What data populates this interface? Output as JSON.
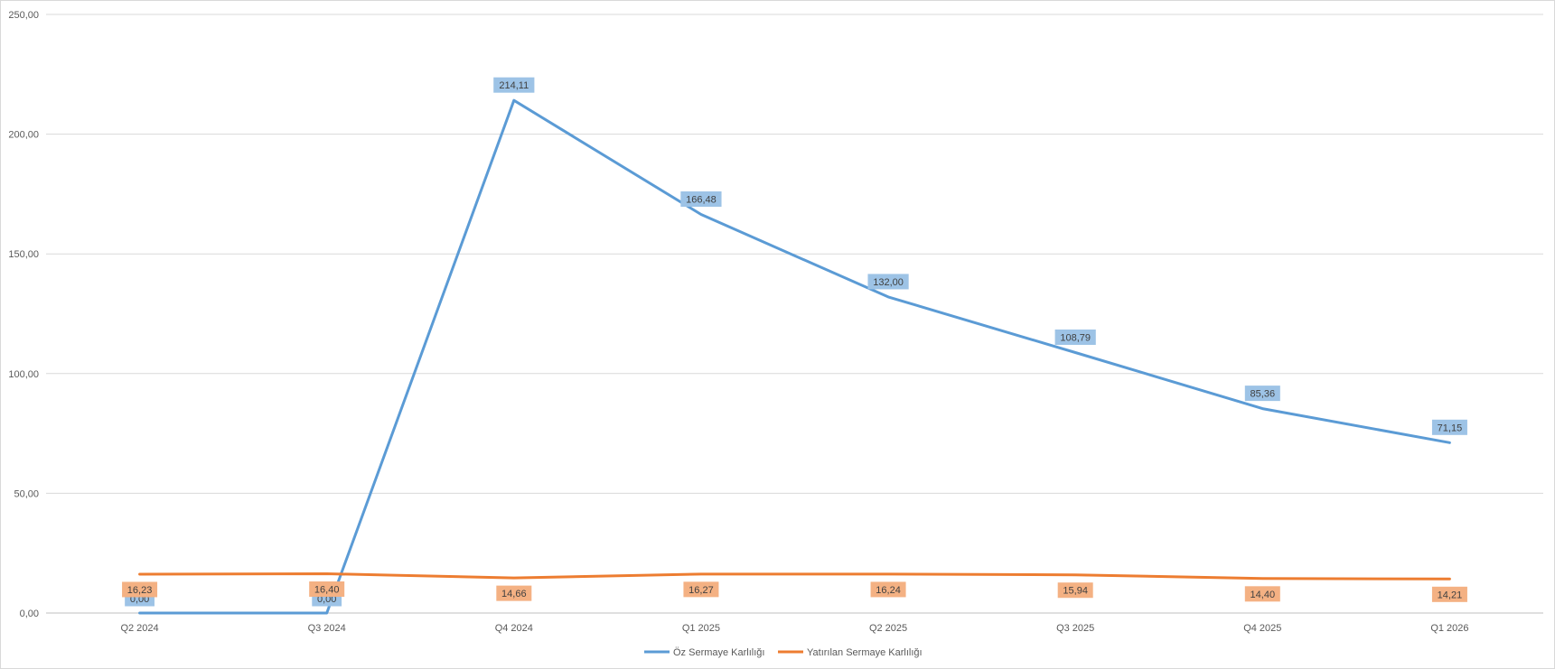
{
  "chart_data": {
    "type": "line",
    "title": "",
    "xlabel": "",
    "ylabel": "",
    "categories": [
      "Q2 2024",
      "Q3 2024",
      "Q4 2024",
      "Q1 2025",
      "Q2 2025",
      "Q3 2025",
      "Q4 2025",
      "Q1 2026"
    ],
    "ylim": [
      0,
      250
    ],
    "yticks": [
      0,
      50,
      100,
      150,
      200,
      250
    ],
    "ytick_labels": [
      "0,00",
      "50,00",
      "100,00",
      "150,00",
      "200,00",
      "250,00"
    ],
    "grid": true,
    "legend_position": "bottom",
    "series": [
      {
        "name": "Öz Sermaye Karlılığı",
        "color": "#5b9bd5",
        "label_bg": "#9dc3e6",
        "values": [
          0,
          0,
          214.11,
          166.48,
          132.0,
          108.79,
          85.36,
          71.15
        ],
        "labels": [
          "0,00",
          "0,00",
          "214,11",
          "166,48",
          "132,00",
          "108,79",
          "85,36",
          "71,15"
        ]
      },
      {
        "name": "Yatırılan Sermaye Karlılığı",
        "color": "#ed7d31",
        "label_bg": "#f4b183",
        "values": [
          16.23,
          16.4,
          14.66,
          16.27,
          16.24,
          15.94,
          14.4,
          14.21
        ],
        "labels": [
          "16,23",
          "16,40",
          "14,66",
          "16,27",
          "16,24",
          "15,94",
          "14,40",
          "14,21"
        ]
      }
    ]
  }
}
